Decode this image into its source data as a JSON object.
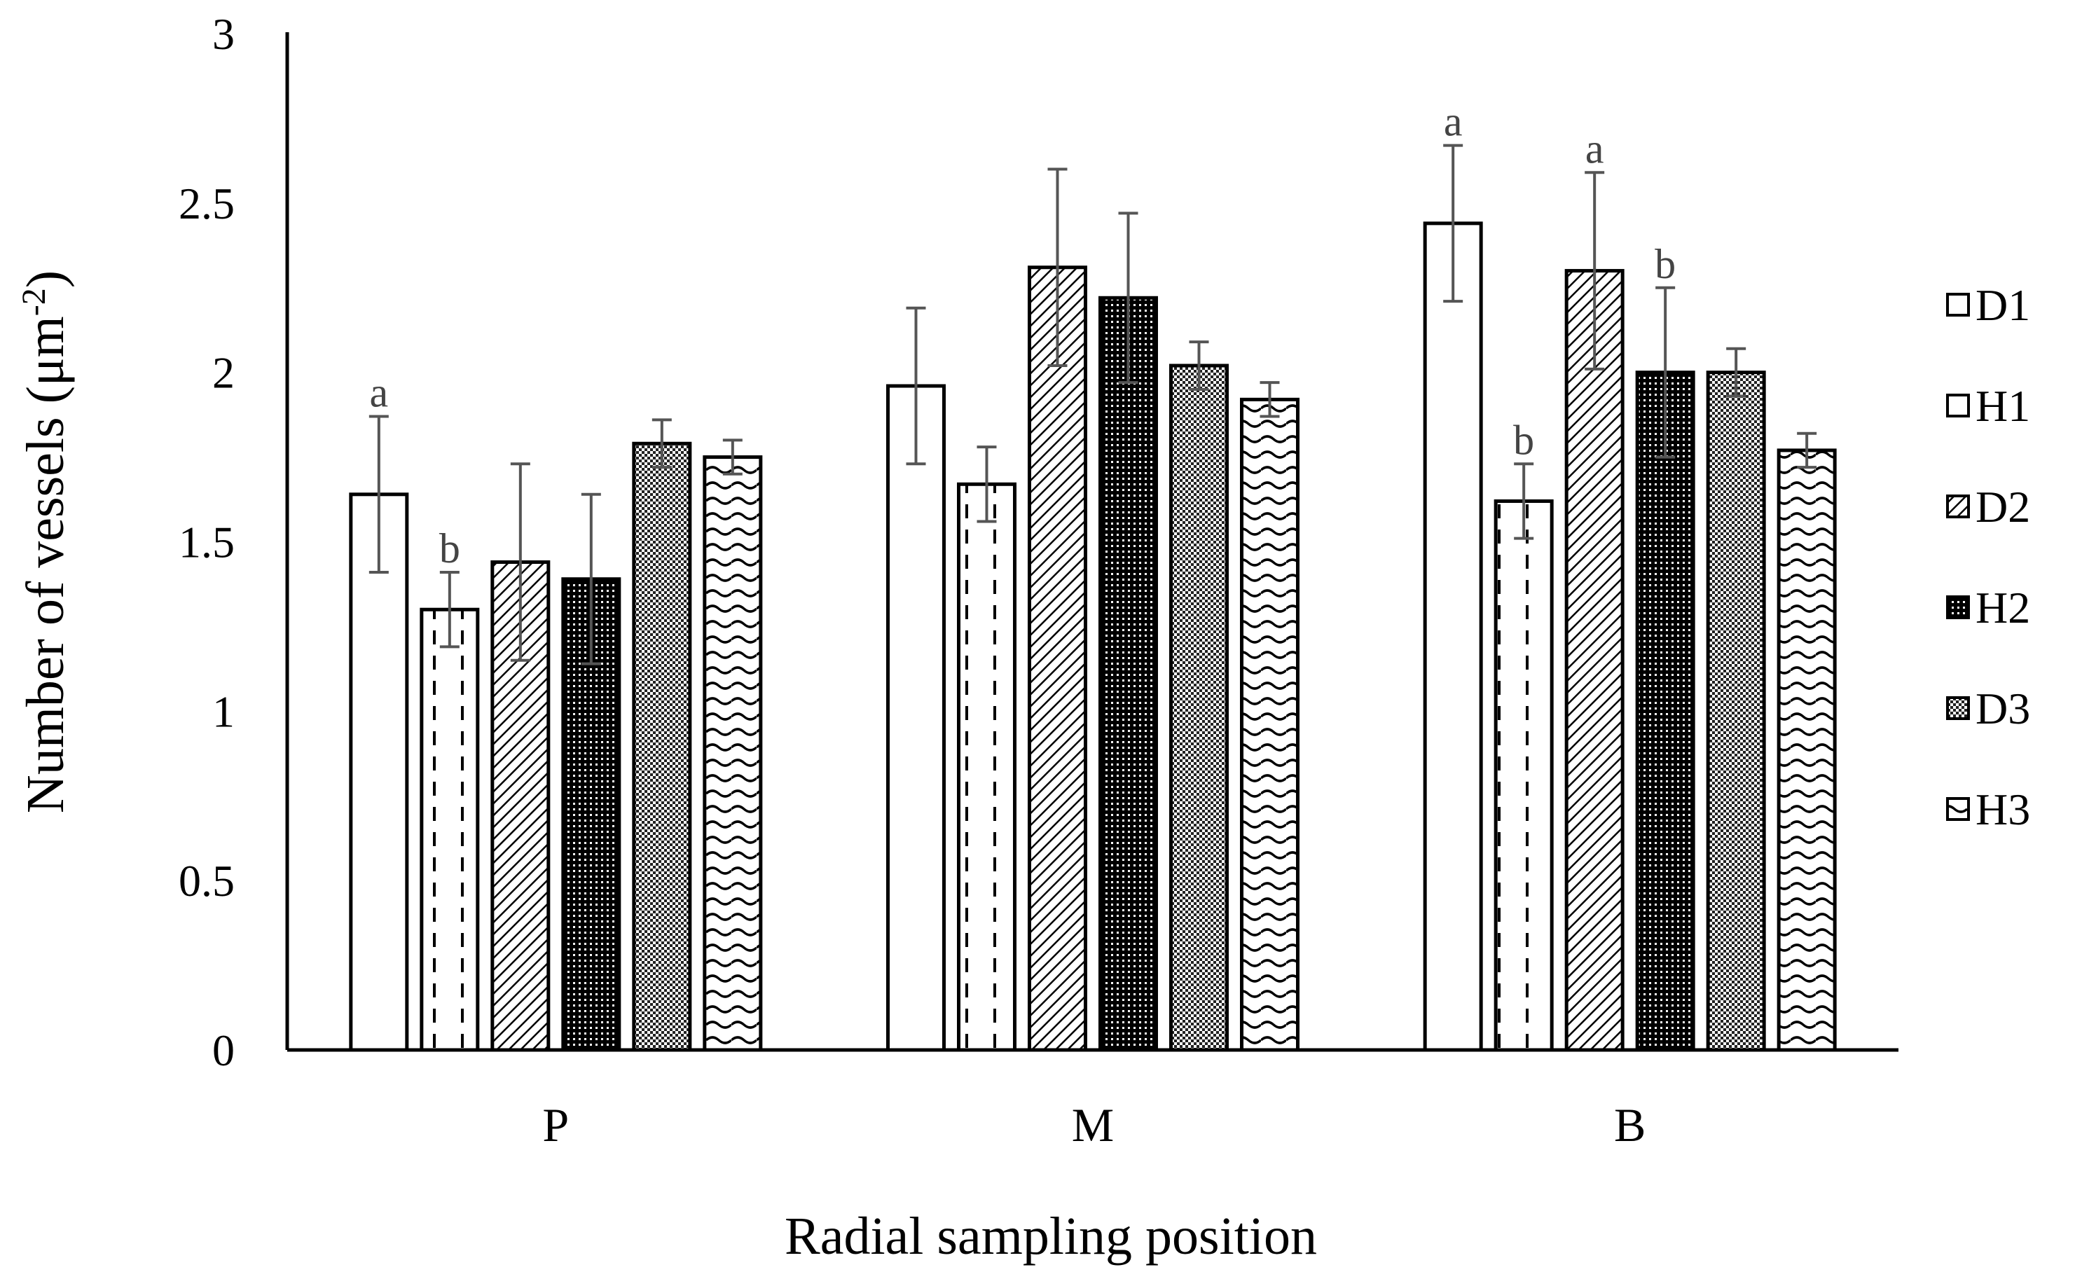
{
  "chart_data": {
    "type": "bar",
    "title": "",
    "xlabel": "Radial sampling position",
    "ylabel_main": "Number of vessels (μm",
    "ylabel_sup": "-2",
    "ylabel_close": ")",
    "ylim": [
      0,
      3
    ],
    "yticks": [
      0,
      0.5,
      1,
      1.5,
      2,
      2.5,
      3
    ],
    "ytick_labels": [
      "0",
      "0.5",
      "1",
      "1.5",
      "2",
      "2.5",
      "3"
    ],
    "categories": [
      "P",
      "M",
      "B"
    ],
    "legend_position": "right",
    "series": [
      {
        "name": "D1",
        "values": [
          1.64,
          1.96,
          2.44
        ],
        "errors": [
          0.23,
          0.23,
          0.23
        ],
        "pattern": "blank"
      },
      {
        "name": "H1",
        "values": [
          1.3,
          1.67,
          1.62
        ],
        "errors": [
          0.11,
          0.11,
          0.11
        ],
        "pattern": "dashed-vertical"
      },
      {
        "name": "D2",
        "values": [
          1.44,
          2.31,
          2.3
        ],
        "errors": [
          0.29,
          0.29,
          0.29
        ],
        "pattern": "diagonal"
      },
      {
        "name": "H2",
        "values": [
          1.39,
          2.22,
          2.0
        ],
        "errors": [
          0.25,
          0.25,
          0.25
        ],
        "pattern": "dense-dots"
      },
      {
        "name": "D3",
        "values": [
          1.79,
          2.02,
          2.0
        ],
        "errors": [
          0.07,
          0.07,
          0.07
        ],
        "pattern": "checker"
      },
      {
        "name": "H3",
        "values": [
          1.75,
          1.92,
          1.77
        ],
        "errors": [
          0.05,
          0.05,
          0.05
        ],
        "pattern": "waves"
      }
    ],
    "annotations": [
      {
        "series": "D1",
        "category": "P",
        "text": "a"
      },
      {
        "series": "H1",
        "category": "P",
        "text": "b"
      },
      {
        "series": "D1",
        "category": "B",
        "text": "a"
      },
      {
        "series": "H1",
        "category": "B",
        "text": "b"
      },
      {
        "series": "D2",
        "category": "B",
        "text": "a"
      },
      {
        "series": "H2",
        "category": "B",
        "text": "b"
      }
    ]
  }
}
